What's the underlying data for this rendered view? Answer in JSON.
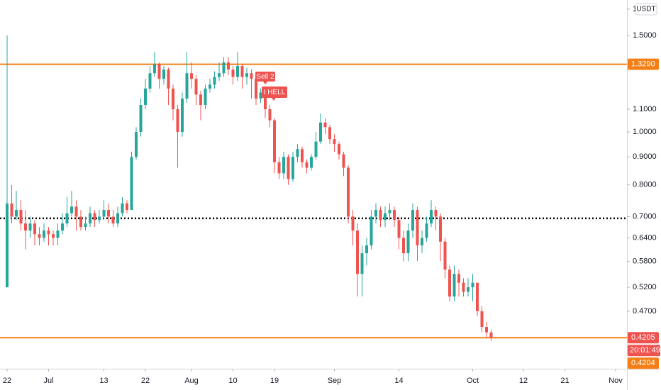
{
  "chart_data": {
    "type": "candlestick",
    "unit": "USDT",
    "countdown": "20:01:49",
    "log_scale": true,
    "grid": false,
    "up_color": "#26a69a",
    "down_color": "#ef5350",
    "xlim": [
      -1.54,
      134.46
    ],
    "ylim": [
      0.369,
      1.742
    ],
    "xticks": [
      {
        "value": 0,
        "label": "22"
      },
      {
        "value": 9,
        "label": "Jul"
      },
      {
        "value": 21,
        "label": "13"
      },
      {
        "value": 30,
        "label": "22"
      },
      {
        "value": 40,
        "label": "Aug"
      },
      {
        "value": 49,
        "label": "10"
      },
      {
        "value": 58,
        "label": "19"
      },
      {
        "value": 71,
        "label": "Sep"
      },
      {
        "value": 85,
        "label": "14"
      },
      {
        "value": 101,
        "label": "Oct"
      },
      {
        "value": 112,
        "label": "12"
      },
      {
        "value": 121,
        "label": "21"
      },
      {
        "value": 132,
        "label": "Nov"
      }
    ],
    "yticks": [
      {
        "value": 1.676,
        "label": "1"
      },
      {
        "value": 1.5,
        "label": "1.5000"
      },
      {
        "value": 1.1,
        "label": "1.1000"
      },
      {
        "value": 1.0,
        "label": "1.0000"
      },
      {
        "value": 0.9,
        "label": "0.9000"
      },
      {
        "value": 0.8,
        "label": "0.8000"
      },
      {
        "value": 0.7,
        "label": "0.7000"
      },
      {
        "value": 0.64,
        "label": "0.6400"
      },
      {
        "value": 0.58,
        "label": "0.5800"
      },
      {
        "value": 0.52,
        "label": "0.5200"
      },
      {
        "value": 0.47,
        "label": "0.4700"
      }
    ],
    "hlines": [
      {
        "value": 1.329,
        "label": "1.3290",
        "color": "#f57f17",
        "style": "solid"
      },
      {
        "value": 0.4204,
        "label": "0.4204",
        "color": "#f57f17",
        "style": "solid"
      },
      {
        "value": 0.695,
        "color": "#000000",
        "style": "dotted"
      }
    ],
    "annotations": [
      "Sell 2",
      "I HELL"
    ],
    "open": [
      0.52,
      0.74,
      0.7,
      0.72,
      0.68,
      0.66,
      0.68,
      0.65,
      0.64,
      0.66,
      0.65,
      0.64,
      0.66,
      0.68,
      0.71,
      0.73,
      0.7,
      0.67,
      0.68,
      0.71,
      0.69,
      0.7,
      0.72,
      0.7,
      0.68,
      0.71,
      0.74,
      0.72,
      0.9,
      1.0,
      1.12,
      1.2,
      1.28,
      1.33,
      1.25,
      1.3,
      1.2,
      1.1,
      1.0,
      1.15,
      1.28,
      1.25,
      1.17,
      1.12,
      1.2,
      1.22,
      1.26,
      1.28,
      1.34,
      1.3,
      1.26,
      1.32,
      1.26,
      1.28,
      1.25,
      1.15,
      1.18,
      1.1,
      1.05,
      0.88,
      0.84,
      0.9,
      0.82,
      0.9,
      0.93,
      0.88,
      0.86,
      0.9,
      0.96,
      1.04,
      1.02,
      0.97,
      0.95,
      0.91,
      0.86,
      0.7,
      0.66,
      0.55,
      0.6,
      0.62,
      0.7,
      0.72,
      0.69,
      0.71,
      0.72,
      0.69,
      0.64,
      0.6,
      0.66,
      0.72,
      0.62,
      0.64,
      0.68,
      0.72,
      0.7,
      0.63,
      0.56,
      0.5,
      0.55,
      0.53,
      0.51,
      0.52,
      0.53,
      0.47,
      0.44,
      0.43
    ],
    "high": [
      1.5,
      0.8,
      0.78,
      0.75,
      0.72,
      0.7,
      0.69,
      0.67,
      0.68,
      0.67,
      0.66,
      0.68,
      0.71,
      0.76,
      0.78,
      0.75,
      0.72,
      0.7,
      0.73,
      0.72,
      0.72,
      0.75,
      0.74,
      0.72,
      0.73,
      0.76,
      0.75,
      0.92,
      1.02,
      1.15,
      1.25,
      1.32,
      1.4,
      1.34,
      1.32,
      1.31,
      1.22,
      1.12,
      1.18,
      1.4,
      1.34,
      1.27,
      1.19,
      1.22,
      1.25,
      1.29,
      1.34,
      1.37,
      1.37,
      1.32,
      1.4,
      1.33,
      1.31,
      1.3,
      1.27,
      1.2,
      1.19,
      1.12,
      1.06,
      0.9,
      0.92,
      0.91,
      0.92,
      0.95,
      0.94,
      0.89,
      0.91,
      1.0,
      1.08,
      1.06,
      1.03,
      0.99,
      0.96,
      0.92,
      0.87,
      0.72,
      0.68,
      0.62,
      0.64,
      0.72,
      0.74,
      0.73,
      0.73,
      0.74,
      0.73,
      0.7,
      0.66,
      0.68,
      0.74,
      0.73,
      0.66,
      0.7,
      0.75,
      0.73,
      0.71,
      0.64,
      0.57,
      0.57,
      0.56,
      0.54,
      0.54,
      0.55,
      0.53,
      0.48,
      0.45,
      0.435
    ],
    "low": [
      0.52,
      0.68,
      0.69,
      0.66,
      0.61,
      0.64,
      0.62,
      0.62,
      0.63,
      0.62,
      0.62,
      0.62,
      0.65,
      0.67,
      0.7,
      0.66,
      0.66,
      0.66,
      0.67,
      0.67,
      0.68,
      0.69,
      0.68,
      0.67,
      0.67,
      0.7,
      0.71,
      0.72,
      0.89,
      0.98,
      1.1,
      1.18,
      1.26,
      1.2,
      1.22,
      1.12,
      1.05,
      0.86,
      0.98,
      1.13,
      1.2,
      1.12,
      1.05,
      1.1,
      1.18,
      1.2,
      1.24,
      1.26,
      1.27,
      1.22,
      1.24,
      1.2,
      1.22,
      1.15,
      1.12,
      1.13,
      1.06,
      1.02,
      0.84,
      0.82,
      0.82,
      0.8,
      0.81,
      0.88,
      0.86,
      0.84,
      0.85,
      0.89,
      0.95,
      0.99,
      0.95,
      0.92,
      0.89,
      0.83,
      0.68,
      0.62,
      0.5,
      0.5,
      0.57,
      0.61,
      0.68,
      0.67,
      0.67,
      0.69,
      0.67,
      0.61,
      0.58,
      0.58,
      0.64,
      0.58,
      0.6,
      0.63,
      0.67,
      0.66,
      0.58,
      0.54,
      0.49,
      0.49,
      0.5,
      0.5,
      0.5,
      0.49,
      0.46,
      0.43,
      0.42,
      0.415
    ],
    "close": [
      0.74,
      0.7,
      0.72,
      0.68,
      0.66,
      0.68,
      0.65,
      0.64,
      0.66,
      0.65,
      0.64,
      0.66,
      0.68,
      0.71,
      0.73,
      0.7,
      0.67,
      0.68,
      0.71,
      0.69,
      0.7,
      0.72,
      0.7,
      0.68,
      0.71,
      0.74,
      0.72,
      0.9,
      1.0,
      1.12,
      1.2,
      1.28,
      1.33,
      1.25,
      1.3,
      1.2,
      1.1,
      1.0,
      1.15,
      1.28,
      1.25,
      1.17,
      1.12,
      1.2,
      1.22,
      1.26,
      1.28,
      1.34,
      1.3,
      1.26,
      1.32,
      1.26,
      1.28,
      1.25,
      1.15,
      1.18,
      1.1,
      1.05,
      0.88,
      0.84,
      0.9,
      0.82,
      0.9,
      0.93,
      0.88,
      0.86,
      0.9,
      0.96,
      1.04,
      1.02,
      0.97,
      0.95,
      0.91,
      0.86,
      0.7,
      0.66,
      0.55,
      0.6,
      0.62,
      0.7,
      0.72,
      0.69,
      0.71,
      0.72,
      0.69,
      0.64,
      0.6,
      0.66,
      0.72,
      0.62,
      0.64,
      0.68,
      0.72,
      0.7,
      0.63,
      0.56,
      0.5,
      0.55,
      0.53,
      0.51,
      0.52,
      0.53,
      0.47,
      0.44,
      0.43,
      0.4205
    ]
  }
}
